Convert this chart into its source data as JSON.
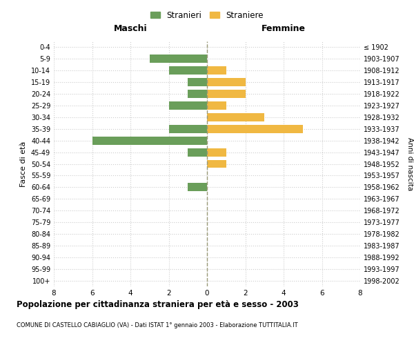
{
  "age_groups": [
    "0-4",
    "5-9",
    "10-14",
    "15-19",
    "20-24",
    "25-29",
    "30-34",
    "35-39",
    "40-44",
    "45-49",
    "50-54",
    "55-59",
    "60-64",
    "65-69",
    "70-74",
    "75-79",
    "80-84",
    "85-89",
    "90-94",
    "95-99",
    "100+"
  ],
  "birth_years": [
    "1998-2002",
    "1993-1997",
    "1988-1992",
    "1983-1987",
    "1978-1982",
    "1973-1977",
    "1968-1972",
    "1963-1967",
    "1958-1962",
    "1953-1957",
    "1948-1952",
    "1943-1947",
    "1938-1942",
    "1933-1937",
    "1928-1932",
    "1923-1927",
    "1918-1922",
    "1913-1917",
    "1908-1912",
    "1903-1907",
    "≤ 1902"
  ],
  "maschi": [
    0,
    3,
    2,
    1,
    1,
    2,
    0,
    2,
    6,
    1,
    0,
    0,
    1,
    0,
    0,
    0,
    0,
    0,
    0,
    0,
    0
  ],
  "femmine": [
    0,
    0,
    1,
    2,
    2,
    1,
    3,
    5,
    0,
    1,
    1,
    0,
    0,
    0,
    0,
    0,
    0,
    0,
    0,
    0,
    0
  ],
  "color_maschi": "#6a9e5a",
  "color_femmine": "#f0b842",
  "title": "Popolazione per cittadinanza straniera per età e sesso - 2003",
  "subtitle": "COMUNE DI CASTELLO CABIAGLIO (VA) - Dati ISTAT 1° gennaio 2003 - Elaborazione TUTTITALIA.IT",
  "xlabel_left": "Maschi",
  "xlabel_right": "Femmine",
  "ylabel_left": "Fasce di età",
  "ylabel_right": "Anni di nascita",
  "legend_maschi": "Stranieri",
  "legend_femmine": "Straniere",
  "xlim": 8,
  "background_color": "#ffffff",
  "grid_color": "#cccccc"
}
